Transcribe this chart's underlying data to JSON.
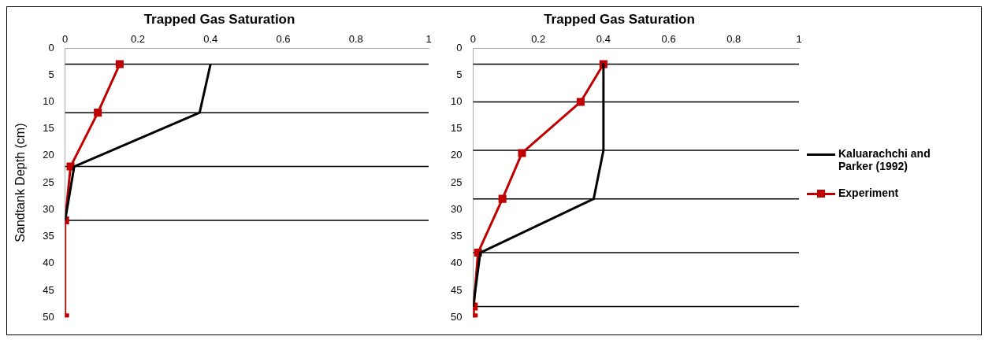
{
  "chart_data": [
    {
      "type": "line",
      "title": "Trapped Gas Saturation",
      "ylabel": "Sandtank Depth (cm)",
      "xlim": [
        0,
        1
      ],
      "xticks": [
        0,
        0.2,
        0.4,
        0.6,
        0.8,
        1
      ],
      "ylim": [
        50,
        0
      ],
      "yticks": [
        0,
        5,
        10,
        15,
        20,
        25,
        30,
        35,
        40,
        45,
        50
      ],
      "grid": false,
      "series": [
        {
          "color": "#000000",
          "marker": "none",
          "x": [
            0.4,
            0.37,
            0.025,
            0
          ],
          "values": [
            3,
            12,
            22,
            32
          ]
        },
        {
          "color": "#c00000",
          "marker": "square",
          "x": [
            0.15,
            0.09,
            0.015,
            0,
            0
          ],
          "values": [
            3,
            12,
            22,
            32,
            50
          ]
        }
      ],
      "ref_lines": [
        {
          "axis": "y",
          "value": 3,
          "color": "#000000"
        },
        {
          "axis": "y",
          "value": 12,
          "color": "#000000"
        },
        {
          "axis": "y",
          "value": 22,
          "color": "#000000"
        },
        {
          "axis": "y",
          "value": 32,
          "color": "#000000"
        }
      ]
    },
    {
      "type": "line",
      "title": "Trapped Gas Saturation",
      "xlim": [
        0,
        1
      ],
      "xticks": [
        0,
        0.2,
        0.4,
        0.6,
        0.8,
        1
      ],
      "ylim": [
        50,
        0
      ],
      "yticks": [
        0,
        5,
        10,
        15,
        20,
        25,
        30,
        35,
        40,
        45,
        50
      ],
      "grid": false,
      "legend": "right",
      "series": [
        {
          "name": "Kaluarachchi and Parker (1992)",
          "color": "#000000",
          "marker": "none",
          "x": [
            0.4,
            0.4,
            0.37,
            0.022,
            0
          ],
          "values": [
            3,
            19,
            28,
            38,
            48
          ]
        },
        {
          "name": "Experiment",
          "color": "#c00000",
          "marker": "square",
          "x": [
            0.4,
            0.33,
            0.15,
            0.09,
            0.015,
            0.002,
            0.002
          ],
          "values": [
            3,
            10,
            19.5,
            28,
            38,
            48,
            50
          ]
        }
      ],
      "ref_lines": [
        {
          "axis": "y",
          "value": 3,
          "color": "#000000"
        },
        {
          "axis": "y",
          "value": 10,
          "color": "#000000"
        },
        {
          "axis": "y",
          "value": 19,
          "color": "#000000"
        },
        {
          "axis": "y",
          "value": 28,
          "color": "#000000"
        },
        {
          "axis": "y",
          "value": 38,
          "color": "#000000"
        },
        {
          "axis": "y",
          "value": 48,
          "color": "#000000"
        }
      ]
    }
  ]
}
